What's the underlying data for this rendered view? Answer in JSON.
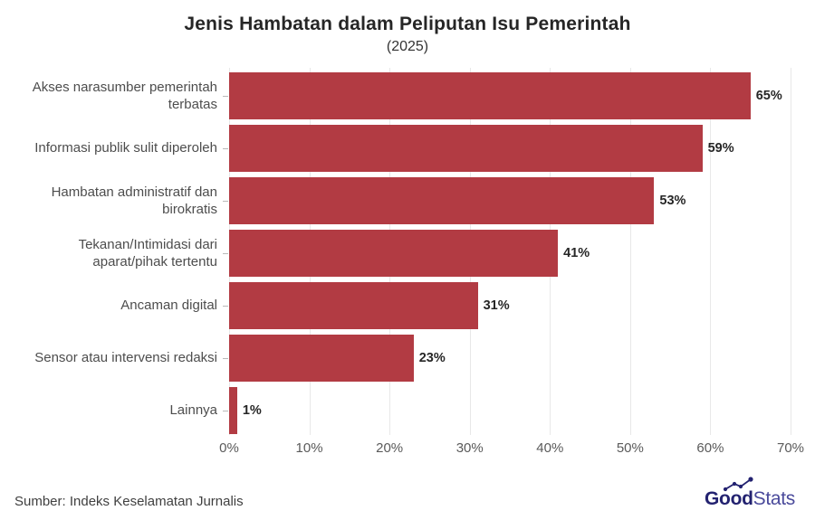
{
  "header": {
    "title": "Jenis Hambatan dalam Peliputan Isu Pemerintah",
    "subtitle": "(2025)"
  },
  "chart_data": {
    "type": "bar",
    "orientation": "horizontal",
    "title": "Jenis Hambatan dalam Peliputan Isu Pemerintah",
    "subtitle": "(2025)",
    "categories": [
      "Akses narasumber pemerintah terbatas",
      "Informasi publik sulit diperoleh",
      "Hambatan administratif dan birokratis",
      "Tekanan/Intimidasi dari aparat/pihak tertentu",
      "Ancaman digital",
      "Sensor atau intervensi redaksi",
      "Lainnya"
    ],
    "values": [
      65,
      59,
      53,
      41,
      31,
      23,
      1
    ],
    "value_labels": [
      "65%",
      "59%",
      "53%",
      "41%",
      "31%",
      "23%",
      "1%"
    ],
    "x_ticks": [
      "0%",
      "10%",
      "20%",
      "30%",
      "40%",
      "50%",
      "60%",
      "70%"
    ],
    "x_tick_values": [
      0,
      10,
      20,
      30,
      40,
      50,
      60,
      70
    ],
    "xlim": [
      0,
      70
    ],
    "grid": true,
    "legend": false,
    "bar_color": "#b23b43"
  },
  "colors": {
    "bar": "#b23b43",
    "gridline": "#e8e8e8",
    "title_text": "#262626",
    "category_text": "#4d4d4d",
    "axis_text": "#5a5a5a",
    "logo_navy": "#232270",
    "logo_light_navy": "#4a4a9b"
  },
  "footer": {
    "source": "Sumber: Indeks Keselamatan Jurnalis",
    "logo_bold": "Good",
    "logo_light": "Stats"
  }
}
